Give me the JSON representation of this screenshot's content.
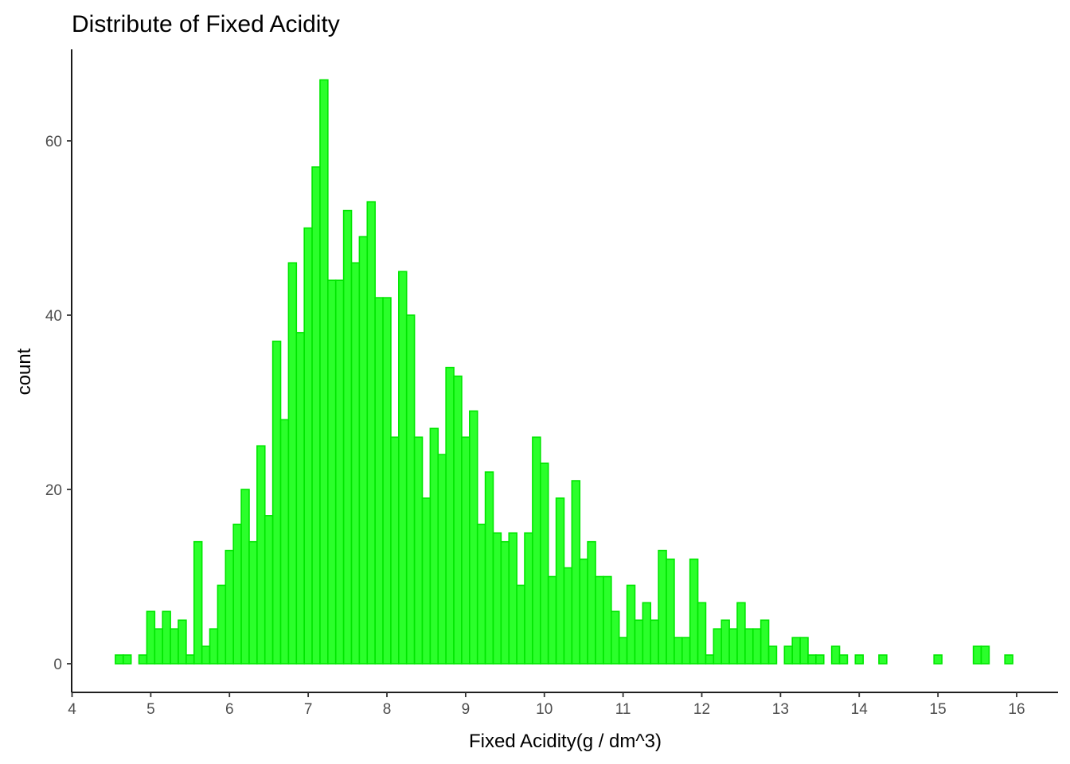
{
  "chart_data": {
    "type": "bar",
    "title": "Distribute of Fixed Acidity",
    "xlabel": "Fixed Acidity(g / dm^3)",
    "ylabel": "count",
    "xlim": [
      4,
      16.5
    ],
    "ylim": [
      -3.2,
      70
    ],
    "grid": false,
    "legend": "none",
    "bin_width": 0.1,
    "x_ticks": [
      4,
      5,
      6,
      7,
      8,
      9,
      10,
      11,
      12,
      13,
      14,
      15,
      16
    ],
    "y_ticks": [
      0,
      20,
      40,
      60
    ],
    "x": [
      4.6,
      4.7,
      4.8,
      4.9,
      5.0,
      5.1,
      5.2,
      5.3,
      5.4,
      5.5,
      5.6,
      5.7,
      5.8,
      5.9,
      6.0,
      6.1,
      6.2,
      6.3,
      6.4,
      6.5,
      6.6,
      6.7,
      6.8,
      6.9,
      7.0,
      7.1,
      7.2,
      7.3,
      7.4,
      7.5,
      7.6,
      7.7,
      7.8,
      7.9,
      8.0,
      8.1,
      8.2,
      8.3,
      8.4,
      8.5,
      8.6,
      8.7,
      8.8,
      8.9,
      9.0,
      9.1,
      9.2,
      9.3,
      9.4,
      9.5,
      9.6,
      9.7,
      9.8,
      9.9,
      10.0,
      10.1,
      10.2,
      10.3,
      10.4,
      10.5,
      10.6,
      10.7,
      10.8,
      10.9,
      11.0,
      11.1,
      11.2,
      11.3,
      11.4,
      11.5,
      11.6,
      11.7,
      11.8,
      11.9,
      12.0,
      12.1,
      12.2,
      12.3,
      12.4,
      12.5,
      12.6,
      12.7,
      12.8,
      12.9,
      13.0,
      13.1,
      13.2,
      13.3,
      13.4,
      13.5,
      13.6,
      13.7,
      13.8,
      13.9,
      14.0,
      14.1,
      14.2,
      14.3,
      14.4,
      14.5,
      14.6,
      14.7,
      14.8,
      14.9,
      15.0,
      15.1,
      15.2,
      15.3,
      15.4,
      15.5,
      15.6,
      15.7,
      15.8,
      15.9
    ],
    "values": [
      1,
      1,
      0,
      1,
      6,
      4,
      6,
      4,
      5,
      1,
      14,
      2,
      4,
      9,
      13,
      16,
      20,
      14,
      25,
      17,
      37,
      28,
      46,
      38,
      50,
      57,
      67,
      44,
      44,
      52,
      46,
      49,
      53,
      42,
      42,
      26,
      45,
      40,
      26,
      19,
      27,
      24,
      34,
      33,
      26,
      29,
      16,
      22,
      15,
      14,
      15,
      9,
      15,
      26,
      23,
      10,
      19,
      11,
      21,
      12,
      14,
      10,
      10,
      6,
      3,
      9,
      5,
      7,
      5,
      13,
      12,
      3,
      3,
      12,
      7,
      1,
      4,
      5,
      4,
      7,
      4,
      4,
      5,
      2,
      0,
      2,
      3,
      3,
      1,
      1,
      0,
      2,
      1,
      0,
      1,
      0,
      0,
      1,
      0,
      0,
      0,
      0,
      0,
      0,
      1,
      0,
      0,
      0,
      0,
      2,
      2,
      0,
      0,
      1
    ],
    "bar_fill": "#2bff2b",
    "bar_stroke": "#00e600"
  }
}
